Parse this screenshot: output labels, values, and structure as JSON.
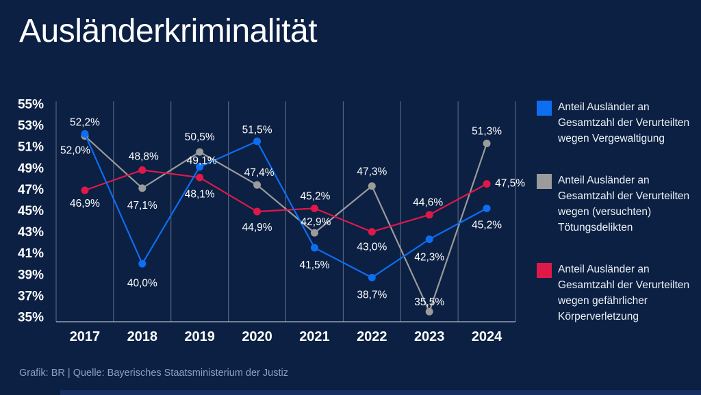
{
  "title": "Ausländerkriminalität",
  "footer": "Grafik: BR | Quelle: Bayerisches Staatsministerium der Justiz",
  "colors": {
    "background": "#0b2043",
    "blue": "#0d6ef2",
    "gray": "#9b9b9b",
    "red": "#de1949",
    "grid": "#a9b3c4",
    "axis": "#b9c2d1",
    "text": "#ffffff",
    "legend_text": "#eef2f8",
    "footer_text": "#8ba0bd",
    "bottom_bar": "#163063"
  },
  "legend": [
    {
      "color_key": "blue",
      "label": "Anteil Ausländer an Gesamtzahl der Verurteilten wegen Vergewaltigung",
      "lines": [
        "Anteil Ausländer an",
        "Gesamtzahl der Verurteilten",
        "wegen Vergewaltigung"
      ]
    },
    {
      "color_key": "gray",
      "label": "Anteil Ausländer an Gesamtzahl der Verurteilten wegen (versuchten) Tötungsdelikten",
      "lines": [
        "Anteil Ausländer an",
        "Gesamtzahl der Verurteilten",
        "wegen (versuchten)",
        "Tötungsdelikten"
      ]
    },
    {
      "color_key": "red",
      "label": "Anteil Ausländer an Gesamtzahl der Verurteilten wegen gefährlicher Körperverletzung",
      "lines": [
        "Anteil Ausländer an",
        "Gesamtzahl der Verurteilten",
        "wegen gefährlicher",
        "Körperverletzung"
      ]
    }
  ],
  "chart_data": {
    "type": "line",
    "title": "Ausländerkriminalität",
    "xlabel": "",
    "ylabel": "",
    "categories": [
      "2017",
      "2018",
      "2019",
      "2020",
      "2021",
      "2022",
      "2023",
      "2024"
    ],
    "ylim": [
      35,
      55
    ],
    "ytick_values": [
      55,
      53,
      51,
      49,
      47,
      45,
      43,
      41,
      39,
      37,
      35
    ],
    "ytick_labels": [
      "55%",
      "53%",
      "51%",
      "49%",
      "47%",
      "45%",
      "43%",
      "41%",
      "39%",
      "37%",
      "35%"
    ],
    "grid": "vertical-column-separators",
    "legend_position": "right",
    "series": [
      {
        "name": "Anteil Ausländer an Gesamtzahl der Verurteilten wegen Vergewaltigung",
        "color_key": "blue",
        "values": [
          52.2,
          40.0,
          49.1,
          51.5,
          41.5,
          38.7,
          42.3,
          45.2
        ],
        "labels": [
          "52,2%",
          "40,0%",
          "49,1%",
          "51,5%",
          "41,5%",
          "38,7%",
          "42,3%",
          "45,2%"
        ],
        "label_offsets": [
          [
            0,
            -17
          ],
          [
            0,
            28
          ],
          [
            3,
            -9
          ],
          [
            0,
            -17
          ],
          [
            0,
            25
          ],
          [
            0,
            25
          ],
          [
            0,
            26
          ],
          [
            0,
            24
          ]
        ]
      },
      {
        "name": "Anteil Ausländer an Gesamtzahl der Verurteilten wegen (versuchten) Tötungsdelikten",
        "color_key": "gray",
        "values": [
          52.0,
          47.1,
          50.5,
          47.4,
          42.9,
          47.3,
          35.5,
          51.3
        ],
        "labels": [
          "52,0%",
          "47,1%",
          "50,5%",
          "47,4%",
          "42,9%",
          "47,3%",
          "35,5%",
          "51,3%"
        ],
        "label_offsets": [
          [
            -14,
            21
          ],
          [
            0,
            25
          ],
          [
            0,
            -22
          ],
          [
            3,
            -18
          ],
          [
            2,
            -16
          ],
          [
            0,
            -21
          ],
          [
            0,
            -14
          ],
          [
            0,
            -18
          ]
        ]
      },
      {
        "name": "Anteil Ausländer an Gesamtzahl der Verurteilten wegen gefährlicher Körperverletzung",
        "color_key": "red",
        "values": [
          46.9,
          48.8,
          48.1,
          44.9,
          45.2,
          43.0,
          44.6,
          47.5
        ],
        "labels": [
          "46,9%",
          "48,8%",
          "48,1%",
          "44,9%",
          "45,2%",
          "43,0%",
          "44,6%",
          "47,5%"
        ],
        "label_offsets": [
          [
            0,
            19
          ],
          [
            2,
            -20
          ],
          [
            0,
            24
          ],
          [
            0,
            23
          ],
          [
            1,
            -18
          ],
          [
            0,
            22
          ],
          [
            -2,
            -18
          ],
          [
            34,
            -1
          ]
        ]
      }
    ]
  }
}
